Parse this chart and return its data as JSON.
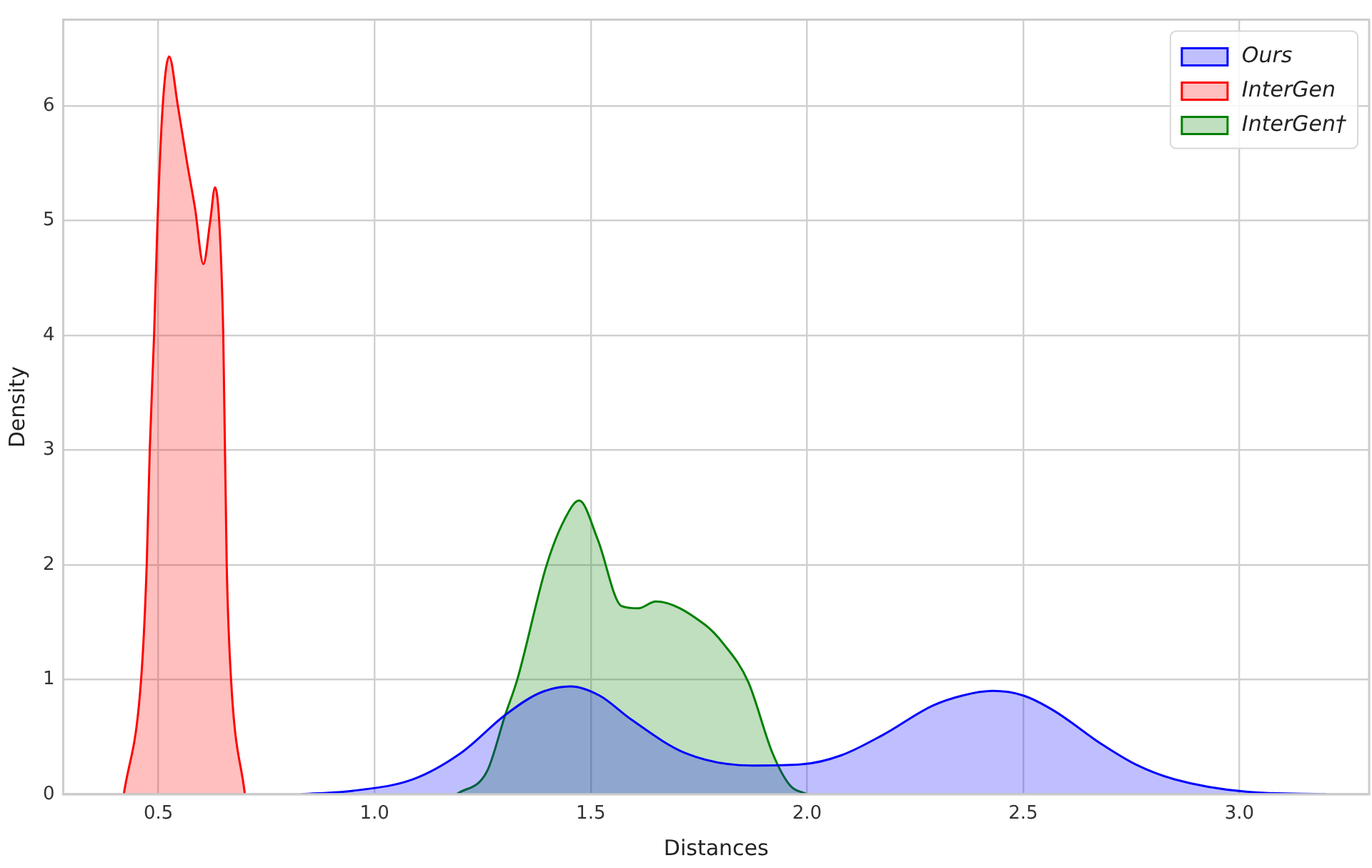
{
  "chart_data": {
    "type": "area",
    "xlabel": "Distances",
    "ylabel": "Density",
    "xlim": [
      0.28,
      3.3
    ],
    "ylim": [
      0,
      6.75
    ],
    "xticks": [
      0.5,
      {
        "value": 1,
        "label": "1.0"
      },
      1.5,
      {
        "value": 2,
        "label": "2.0"
      },
      2.5,
      {
        "value": 3,
        "label": "3.0"
      }
    ],
    "yticks": [
      0,
      1,
      2,
      3,
      4,
      5,
      6
    ],
    "grid": true,
    "legend": "top right",
    "marker": "none",
    "line_style": "solid",
    "series": [
      {
        "name": "Ours",
        "color": "#0000ff",
        "x": [
          0.83,
          0.95,
          1.089,
          1.2,
          1.302,
          1.38,
          1.453,
          1.52,
          1.594,
          1.718,
          1.874,
          1.987,
          2.08,
          2.177,
          2.29,
          2.36,
          2.43,
          2.5,
          2.57,
          2.68,
          2.76,
          2.85,
          3.02,
          3.2
        ],
        "values": [
          0,
          0.03,
          0.13,
          0.36,
          0.69,
          0.88,
          0.94,
          0.86,
          0.65,
          0.36,
          0.25,
          0.26,
          0.34,
          0.52,
          0.77,
          0.86,
          0.9,
          0.86,
          0.73,
          0.44,
          0.26,
          0.13,
          0.02,
          0
        ]
      },
      {
        "name": "InterGen",
        "color": "#ff0000",
        "x": [
          0.42,
          0.46,
          0.473,
          0.48,
          0.49,
          0.498,
          0.51,
          0.525,
          0.545,
          0.566,
          0.585,
          0.604,
          0.62,
          0.631,
          0.642,
          0.65,
          0.658,
          0.668,
          0.7
        ],
        "values": [
          0,
          1,
          2,
          3,
          4,
          5,
          6,
          6.43,
          6,
          5.51,
          5.1,
          4.62,
          5,
          5.29,
          4.9,
          4,
          2,
          1,
          0
        ]
      },
      {
        "name": "InterGen†",
        "color": "#008000",
        "x": [
          1.19,
          1.26,
          1.302,
          1.33,
          1.398,
          1.44,
          1.473,
          1.516,
          1.571,
          1.61,
          1.65,
          1.763,
          1.807,
          1.864,
          1.92,
          1.96,
          2.0
        ],
        "values": [
          0,
          0.2,
          0.69,
          1,
          2,
          2.4,
          2.56,
          2.22,
          1.64,
          1.62,
          1.68,
          1.48,
          1.31,
          0.98,
          0.36,
          0.08,
          0
        ]
      }
    ]
  }
}
